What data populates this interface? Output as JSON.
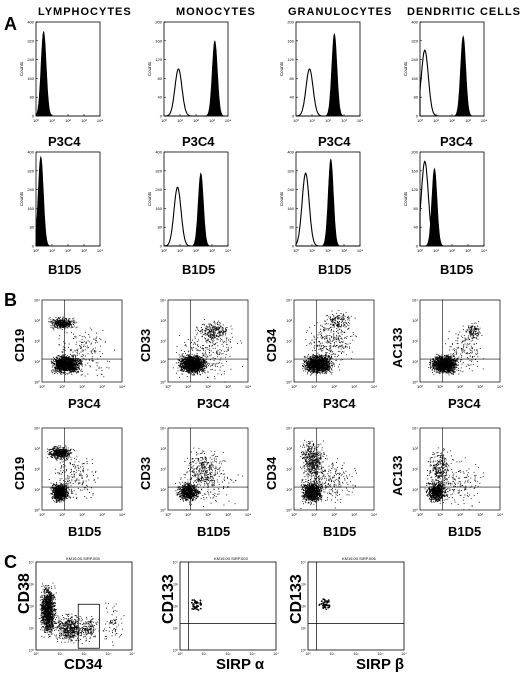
{
  "figure": {
    "panel_labels": {
      "a": "A",
      "b": "B",
      "c": "C"
    },
    "columns": [
      "LYMPHOCYTES",
      "MONOCYTES",
      "GRANULOCYTES",
      "DENDRITIC CELLS"
    ],
    "histogram_ylabel": "Counts",
    "histogram_xticks": [
      "10⁰",
      "10¹",
      "10²",
      "10³",
      "10⁴"
    ],
    "row_a1": {
      "xlabel": "P3C4",
      "yticks": [
        [
          "0",
          "80",
          "160",
          "240",
          "320",
          "400"
        ],
        [
          "0",
          "40",
          "80",
          "120",
          "160",
          "200"
        ],
        [
          "0",
          "40",
          "80",
          "120",
          "160",
          "200"
        ],
        [
          "0",
          "80",
          "160",
          "240",
          "320",
          "400"
        ]
      ]
    },
    "row_a2": {
      "xlabel": "B1D5",
      "yticks": [
        [
          "0",
          "80",
          "160",
          "240",
          "320",
          "400"
        ],
        [
          "0",
          "80",
          "160",
          "240",
          "320",
          "400"
        ],
        [
          "0",
          "80",
          "160",
          "240",
          "320",
          "400"
        ],
        [
          "0",
          "40",
          "80",
          "120",
          "160",
          "200"
        ]
      ]
    },
    "scatter_ticks": [
      "10⁰",
      "10¹",
      "10²",
      "10³",
      "10⁴"
    ],
    "row_b1": {
      "xlabel": "P3C4",
      "ylabels": [
        "CD19",
        "CD33",
        "CD34",
        "AC133"
      ]
    },
    "row_b2": {
      "xlabel": "B1D5",
      "ylabels": [
        "CD19",
        "CD33",
        "CD34",
        "AC133"
      ]
    },
    "panel_c": {
      "plots": [
        {
          "title": "KM15.00.SIRP.005",
          "ylabel": "CD38",
          "xlabel": "CD34",
          "gate": "R2"
        },
        {
          "title": "KM15.00.SIRP.003",
          "ylabel": "CD133",
          "xlabel": "SIRP α"
        },
        {
          "title": "KM15.00.SIRP.006",
          "ylabel": "CD133",
          "xlabel": "SIRP β"
        }
      ]
    }
  },
  "chart_data": [
    {
      "type": "area",
      "title": "LYMPHOCYTES",
      "xlabel": "P3C4",
      "ylabel": "Counts",
      "x_scale": "log",
      "xlim": [
        1,
        10000
      ],
      "ylim": [
        0,
        400
      ],
      "series": [
        {
          "filled": true,
          "peak_x": 3,
          "peak_y": 360
        }
      ]
    },
    {
      "type": "area",
      "title": "MONOCYTES",
      "xlabel": "P3C4",
      "ylabel": "Counts",
      "x_scale": "log",
      "xlim": [
        1,
        10000
      ],
      "ylim": [
        0,
        200
      ],
      "series": [
        {
          "filled": false,
          "peak_x": 8,
          "peak_y": 100
        },
        {
          "filled": true,
          "peak_x": 1500,
          "peak_y": 160
        }
      ]
    },
    {
      "type": "area",
      "title": "GRANULOCYTES",
      "xlabel": "P3C4",
      "ylabel": "Counts",
      "x_scale": "log",
      "xlim": [
        1,
        10000
      ],
      "ylim": [
        0,
        200
      ],
      "series": [
        {
          "filled": false,
          "peak_x": 7,
          "peak_y": 100
        },
        {
          "filled": true,
          "peak_x": 250,
          "peak_y": 175
        }
      ]
    },
    {
      "type": "area",
      "title": "DENDRITIC CELLS",
      "xlabel": "P3C4",
      "ylabel": "Counts",
      "x_scale": "log",
      "xlim": [
        1,
        10000
      ],
      "ylim": [
        0,
        400
      ],
      "series": [
        {
          "filled": false,
          "peak_x": 2,
          "peak_y": 280
        },
        {
          "filled": true,
          "peak_x": 500,
          "peak_y": 340
        }
      ]
    },
    {
      "type": "area",
      "title": "LYMPHOCYTES",
      "xlabel": "B1D5",
      "ylabel": "Counts",
      "x_scale": "log",
      "xlim": [
        1,
        10000
      ],
      "ylim": [
        0,
        400
      ],
      "series": [
        {
          "filled": true,
          "peak_x": 2,
          "peak_y": 380
        }
      ]
    },
    {
      "type": "area",
      "title": "MONOCYTES",
      "xlabel": "B1D5",
      "ylabel": "Counts",
      "x_scale": "log",
      "xlim": [
        1,
        10000
      ],
      "ylim": [
        0,
        400
      ],
      "series": [
        {
          "filled": false,
          "peak_x": 7,
          "peak_y": 250
        },
        {
          "filled": true,
          "peak_x": 200,
          "peak_y": 310
        }
      ]
    },
    {
      "type": "area",
      "title": "GRANULOCYTES",
      "xlabel": "B1D5",
      "ylabel": "Counts",
      "x_scale": "log",
      "xlim": [
        1,
        10000
      ],
      "ylim": [
        0,
        400
      ],
      "series": [
        {
          "filled": false,
          "peak_x": 4,
          "peak_y": 310
        },
        {
          "filled": true,
          "peak_x": 150,
          "peak_y": 370
        }
      ]
    },
    {
      "type": "area",
      "title": "DENDRITIC CELLS",
      "xlabel": "B1D5",
      "ylabel": "Counts",
      "x_scale": "log",
      "xlim": [
        1,
        10000
      ],
      "ylim": [
        0,
        200
      ],
      "series": [
        {
          "filled": false,
          "peak_x": 2,
          "peak_y": 180
        },
        {
          "filled": true,
          "peak_x": 8,
          "peak_y": 165
        }
      ]
    }
  ]
}
